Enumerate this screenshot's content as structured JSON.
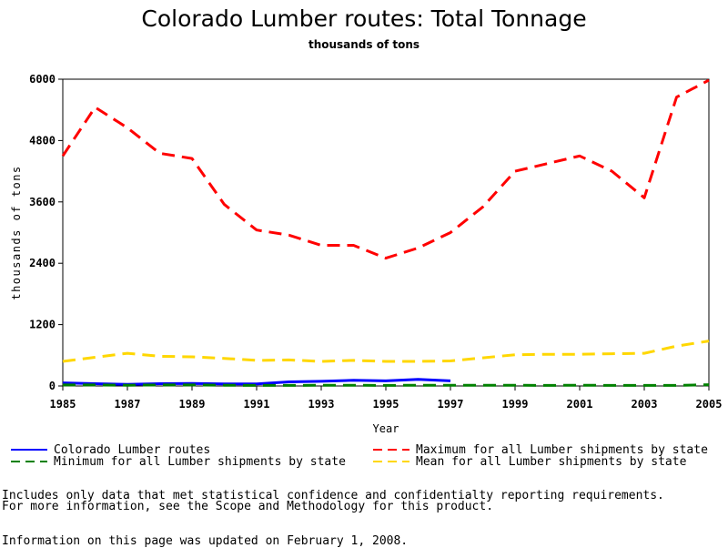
{
  "title": "Colorado Lumber routes: Total Tonnage",
  "subtitle": "thousands of tons",
  "notes": [
    "Includes only data that met statistical confidence and confidentialty reporting requirements.",
    "For more information, see the Scope and Methodology for this product.",
    "Information on this page was updated on February 1, 2008."
  ],
  "chart_data": {
    "type": "line",
    "title": "Colorado Lumber routes: Total Tonnage",
    "subtitle": "thousands of tons",
    "xlabel": "Year",
    "ylabel": "thousands of tons",
    "xlim": [
      1985,
      2005
    ],
    "ylim": [
      0,
      6000
    ],
    "x_ticks": [
      "1985",
      "1987",
      "1989",
      "1991",
      "1993",
      "1995",
      "1997",
      "1999",
      "2001",
      "2003",
      "2005"
    ],
    "y_ticks": [
      "0",
      "1200",
      "2400",
      "3600",
      "4800",
      "6000"
    ],
    "grid": false,
    "legend_position": "bottom",
    "series": [
      {
        "name": "Colorado Lumber routes",
        "color": "#0000ff",
        "dash": "solid",
        "points": [
          [
            1985,
            60
          ],
          [
            1986,
            45
          ],
          [
            1987,
            30
          ],
          [
            1988,
            45
          ],
          [
            1989,
            50
          ],
          [
            1990,
            40
          ],
          [
            1991,
            40
          ],
          [
            1992,
            80
          ],
          [
            1993,
            90
          ],
          [
            1994,
            110
          ],
          [
            1995,
            100
          ],
          [
            1996,
            130
          ],
          [
            1997,
            100
          ]
        ]
      },
      {
        "name": "Maximum for all Lumber shipments by state",
        "color": "#ff0000",
        "dash": "dashed",
        "points": [
          [
            1985,
            4500
          ],
          [
            1986,
            5450
          ],
          [
            1987,
            5050
          ],
          [
            1988,
            4550
          ],
          [
            1989,
            4450
          ],
          [
            1990,
            3550
          ],
          [
            1991,
            3050
          ],
          [
            1992,
            2950
          ],
          [
            1993,
            2750
          ],
          [
            1994,
            2750
          ],
          [
            1995,
            2500
          ],
          [
            1996,
            2700
          ],
          [
            1997,
            3000
          ],
          [
            1998,
            3500
          ],
          [
            1999,
            4200
          ],
          [
            2000,
            4350
          ],
          [
            2001,
            4500
          ],
          [
            2002,
            4200
          ],
          [
            2003,
            3680
          ],
          [
            2004,
            5650
          ],
          [
            2005,
            5980
          ]
        ]
      },
      {
        "name": "Minimum for all Lumber shipments by state",
        "color": "#008000",
        "dash": "dashed",
        "points": [
          [
            1985,
            20
          ],
          [
            1986,
            20
          ],
          [
            1987,
            15
          ],
          [
            1988,
            20
          ],
          [
            1989,
            20
          ],
          [
            1990,
            15
          ],
          [
            1991,
            10
          ],
          [
            1992,
            10
          ],
          [
            1993,
            15
          ],
          [
            1994,
            15
          ],
          [
            1995,
            10
          ],
          [
            1996,
            15
          ],
          [
            1997,
            15
          ],
          [
            1998,
            15
          ],
          [
            1999,
            15
          ],
          [
            2000,
            10
          ],
          [
            2001,
            15
          ],
          [
            2002,
            10
          ],
          [
            2003,
            10
          ],
          [
            2004,
            10
          ],
          [
            2005,
            25
          ]
        ]
      },
      {
        "name": "Mean for all Lumber shipments by state",
        "color": "#ffd700",
        "dash": "dashed",
        "points": [
          [
            1985,
            480
          ],
          [
            1986,
            560
          ],
          [
            1987,
            640
          ],
          [
            1988,
            580
          ],
          [
            1989,
            570
          ],
          [
            1990,
            540
          ],
          [
            1991,
            500
          ],
          [
            1992,
            510
          ],
          [
            1993,
            480
          ],
          [
            1994,
            500
          ],
          [
            1995,
            480
          ],
          [
            1996,
            480
          ],
          [
            1997,
            490
          ],
          [
            1998,
            550
          ],
          [
            1999,
            610
          ],
          [
            2000,
            620
          ],
          [
            2001,
            620
          ],
          [
            2002,
            630
          ],
          [
            2003,
            640
          ],
          [
            2004,
            780
          ],
          [
            2005,
            880
          ]
        ]
      }
    ]
  }
}
